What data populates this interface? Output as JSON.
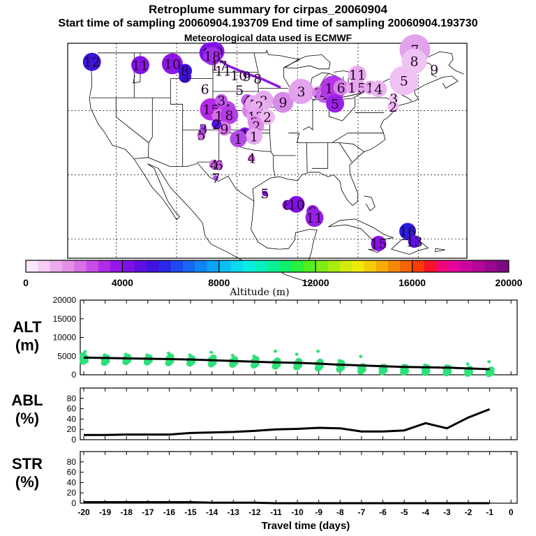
{
  "header": {
    "title": "Retroplume summary for cirpas_20060904",
    "subtitle": "Start time of sampling 20060904.193709     End time of sampling 20060904.193730",
    "met": "Meteorological data used is ECMWF"
  },
  "colorbar": {
    "title": "Altitude (m)",
    "tick_labels": [
      "0",
      "4000",
      "8000",
      "12000",
      "16000",
      "20000"
    ],
    "colors": [
      "#fbe6fb",
      "#f5cdf5",
      "#eeaaee",
      "#e590e8",
      "#d870e6",
      "#c84de6",
      "#b02be8",
      "#9419e8",
      "#7d10e6",
      "#600fe3",
      "#3f12de",
      "#2a27e6",
      "#1f4af0",
      "#1667f3",
      "#0f86f6",
      "#0aa3f5",
      "#07c1f3",
      "#07daee",
      "#05eee0",
      "#04f0bc",
      "#08f096",
      "#0ef06b",
      "#28f03c",
      "#53ee20",
      "#7eec15",
      "#a8ec10",
      "#d2ec0a",
      "#f0ea07",
      "#f5cc05",
      "#f5ac05",
      "#f58705",
      "#f56404",
      "#f73c04",
      "#f8122a",
      "#f3057a",
      "#e3059e",
      "#cb06a0",
      "#b3069a",
      "#98078e",
      "#7b0a80"
    ],
    "color_hex_list_note": ""
  },
  "map": {
    "markers": [
      {
        "label": "12",
        "lon": -124.0,
        "lat": 47.6,
        "size": 13,
        "color": "#3a16d8"
      },
      {
        "label": "11",
        "lon": -116.0,
        "lat": 47.1,
        "size": 13,
        "color": "#8313e6"
      },
      {
        "label": "10",
        "lon": -110.7,
        "lat": 47.3,
        "size": 15,
        "color": "#8a16e6"
      },
      {
        "label": "9",
        "lon": -108.6,
        "lat": 45.3,
        "size": 9,
        "color": "#3d12de"
      },
      {
        "label": "8",
        "lon": -108.6,
        "lat": 46.2,
        "size": 10,
        "color": "#3d12de"
      },
      {
        "label": "20",
        "lon": -103.7,
        "lat": 49.2,
        "size": 14,
        "color": "#8a18e6"
      },
      {
        "label": "19",
        "lon": -104.5,
        "lat": 49.0,
        "size": 15,
        "color": "#7d12e6"
      },
      {
        "label": "18",
        "lon": -104.1,
        "lat": 48.5,
        "size": 13,
        "color": "#a030e8"
      },
      {
        "label": "17",
        "lon": -103.0,
        "lat": 47.0,
        "size": 0,
        "color": "#8a18e6"
      },
      {
        "label": "11",
        "lon": -102.3,
        "lat": 46.2,
        "size": 0,
        "color": "#8a18e6"
      },
      {
        "label": "10",
        "lon": -99.7,
        "lat": 45.5,
        "size": 0,
        "color": "#8a18e6"
      },
      {
        "label": "9",
        "lon": -98.4,
        "lat": 45.4,
        "size": 0,
        "color": "#8a18e6"
      },
      {
        "label": "8",
        "lon": -96.6,
        "lat": 45.0,
        "size": 0,
        "color": "#8a18e6"
      },
      {
        "label": "6",
        "lon": -105.3,
        "lat": 43.4,
        "size": 0,
        "color": "#8a18e6"
      },
      {
        "label": "5",
        "lon": -99.6,
        "lat": 43.2,
        "size": 0,
        "color": "#8a18e6"
      },
      {
        "label": "15",
        "lon": -104.3,
        "lat": 40.2,
        "size": 16,
        "color": "#b52be8"
      },
      {
        "label": "4",
        "lon": -101.6,
        "lat": 40.2,
        "size": 12,
        "color": "#b24ae6"
      },
      {
        "label": "3",
        "lon": -102.6,
        "lat": 41.6,
        "size": 9,
        "color": "#c05ae6"
      },
      {
        "label": "1",
        "lon": -103.0,
        "lat": 39.2,
        "size": 10,
        "color": "#d470e6"
      },
      {
        "label": "8",
        "lon": -101.3,
        "lat": 39.3,
        "size": 13,
        "color": "#b53de8"
      },
      {
        "label": "1",
        "lon": -97.9,
        "lat": 40.0,
        "size": 11,
        "color": "#dc80e8"
      },
      {
        "label": "4",
        "lon": -98.3,
        "lat": 41.6,
        "size": 9,
        "color": "#c55ae6"
      },
      {
        "label": "7",
        "lon": -97.2,
        "lat": 41.0,
        "size": 13,
        "color": "#e4a5ee"
      },
      {
        "label": "3",
        "lon": -95.6,
        "lat": 41.6,
        "size": 14,
        "color": "#e6aaef"
      },
      {
        "label": "2",
        "lon": -96.3,
        "lat": 40.7,
        "size": 12,
        "color": "#e9b0ef"
      },
      {
        "label": "12",
        "lon": -96.9,
        "lat": 39.1,
        "size": 13,
        "color": "#e4a5ee"
      },
      {
        "label": "2",
        "lon": -95.0,
        "lat": 39.0,
        "size": 11,
        "color": "#edbbf0"
      },
      {
        "label": "2",
        "lon": -97.1,
        "lat": 38.2,
        "size": 10,
        "color": "#dd8ee8"
      },
      {
        "label": "2",
        "lon": -96.8,
        "lat": 37.6,
        "size": 11,
        "color": "#dd8ee8"
      },
      {
        "label": "9",
        "lon": -102.1,
        "lat": 37.2,
        "size": 10,
        "color": "#d47ae6"
      },
      {
        "label": "2",
        "lon": -103.4,
        "lat": 37.9,
        "size": 7,
        "color": "#5014e0"
      },
      {
        "label": "1",
        "lon": -98.7,
        "lat": 36.3,
        "size": 10,
        "color": "#7812e6"
      },
      {
        "label": "1",
        "lon": -97.2,
        "lat": 36.0,
        "size": 12,
        "color": "#e6a9ef"
      },
      {
        "label": "1",
        "lon": -99.8,
        "lat": 35.6,
        "size": 12,
        "color": "#b04ae6"
      },
      {
        "label": "5",
        "lon": -105.9,
        "lat": 36.2,
        "size": 6,
        "color": "#d070e6"
      },
      {
        "label": "3",
        "lon": -105.6,
        "lat": 37.2,
        "size": 5,
        "color": "#a040e6"
      },
      {
        "label": "4",
        "lon": -103.8,
        "lat": 31.6,
        "size": 7,
        "color": "#d070e6"
      },
      {
        "label": "6",
        "lon": -103.0,
        "lat": 31.5,
        "size": 6,
        "color": "#c860e6"
      },
      {
        "label": "7",
        "lon": -103.5,
        "lat": 29.5,
        "size": 4,
        "color": "#a050e6"
      },
      {
        "label": "4",
        "lon": -97.6,
        "lat": 32.6,
        "size": 5,
        "color": "#d070e6"
      },
      {
        "label": "9",
        "lon": -92.4,
        "lat": 41.3,
        "size": 15,
        "color": "#d58ae8"
      },
      {
        "label": "3",
        "lon": -89.4,
        "lat": 43.0,
        "size": 18,
        "color": "#e3a2ee"
      },
      {
        "label": "3",
        "lon": -86.6,
        "lat": 42.8,
        "size": 9,
        "color": "#d68ae8"
      },
      {
        "label": "4",
        "lon": -85.6,
        "lat": 42.5,
        "size": 12,
        "color": "#c665e6"
      },
      {
        "label": "16",
        "lon": -84.1,
        "lat": 43.5,
        "size": 18,
        "color": "#b535e8"
      },
      {
        "label": "5",
        "lon": -83.8,
        "lat": 41.1,
        "size": 13,
        "color": "#9a20e8"
      },
      {
        "label": "6",
        "lon": -82.8,
        "lat": 43.6,
        "size": 11,
        "color": "#d683e8"
      },
      {
        "label": "1",
        "lon": -81.0,
        "lat": 43.6,
        "size": 9,
        "color": "#e6a9ef"
      },
      {
        "label": "11",
        "lon": -80.1,
        "lat": 45.6,
        "size": 13,
        "color": "#e6a9ef"
      },
      {
        "label": "5",
        "lon": -79.4,
        "lat": 43.6,
        "size": 8,
        "color": "#e6a9ef"
      },
      {
        "label": "1",
        "lon": -78.0,
        "lat": 43.6,
        "size": 10,
        "color": "#e6a9ef"
      },
      {
        "label": "4",
        "lon": -76.6,
        "lat": 43.4,
        "size": 12,
        "color": "#ebb6f0"
      },
      {
        "label": "5",
        "lon": -72.4,
        "lat": 44.7,
        "size": 21,
        "color": "#f0c1f3"
      },
      {
        "label": "3",
        "lon": -74.1,
        "lat": 41.9,
        "size": 7,
        "color": "#f3cdf5"
      },
      {
        "label": "2",
        "lon": -74.2,
        "lat": 40.6,
        "size": 8,
        "color": "#ecbbf0"
      },
      {
        "label": "7",
        "lon": -70.6,
        "lat": 49.5,
        "size": 22,
        "color": "#e3a2ee"
      },
      {
        "label": "8",
        "lon": -70.7,
        "lat": 47.7,
        "size": 18,
        "color": "#efc4f3"
      },
      {
        "label": "9",
        "lon": -67.4,
        "lat": 46.4,
        "size": 0,
        "color": "#efc4f3"
      },
      {
        "label": "5",
        "lon": -95.4,
        "lat": 27.1,
        "size": 4,
        "color": "#8010e6"
      },
      {
        "label": "8",
        "lon": -91.7,
        "lat": 25.3,
        "size": 7,
        "color": "#8010e6"
      },
      {
        "label": "10",
        "lon": -90.2,
        "lat": 25.4,
        "size": 12,
        "color": "#8010e6"
      },
      {
        "label": "9",
        "lon": -87.5,
        "lat": 24.3,
        "size": 9,
        "color": "#9520e8"
      },
      {
        "label": "11",
        "lon": -87.2,
        "lat": 23.3,
        "size": 13,
        "color": "#9520e8"
      },
      {
        "label": "16",
        "lon": -71.8,
        "lat": 21.2,
        "size": 12,
        "color": "#2a1ede"
      },
      {
        "label": "13",
        "lon": -70.7,
        "lat": 19.6,
        "size": 9,
        "color": "#5a14e0"
      },
      {
        "label": "15",
        "lon": -76.6,
        "lat": 19.3,
        "size": 11,
        "color": "#8a10e6"
      }
    ],
    "trail": [
      [
        -104.2,
        49.6
      ],
      [
        -103.6,
        48.3
      ],
      [
        -101.5,
        47.0
      ],
      [
        -98.5,
        45.8
      ],
      [
        -95.8,
        44.9
      ],
      [
        -92.8,
        43.6
      ]
    ],
    "trail_color": "#8a16e6"
  },
  "chart_data": [
    {
      "type": "scatter",
      "name": "ALT",
      "ylabel": "ALT\n(m)",
      "ylabel_line1": "ALT",
      "ylabel_line2": "(m)",
      "ylim": [
        0,
        20000
      ],
      "ytick_labels": [
        "20000",
        "15000",
        "10000",
        "5000",
        "0"
      ],
      "yticks": [
        20000,
        15000,
        10000,
        5000,
        0
      ],
      "x": [
        -20,
        -19,
        -18,
        -17,
        -16,
        -15,
        -14,
        -13,
        -12,
        -11,
        -10,
        -9,
        -8,
        -7,
        -6,
        -5,
        -4,
        -3,
        -2,
        -1
      ],
      "mean": [
        4600,
        4500,
        4400,
        4300,
        4200,
        4100,
        3900,
        3700,
        3500,
        3300,
        3200,
        3000,
        2700,
        2500,
        2300,
        2100,
        2000,
        1900,
        1700,
        1500
      ],
      "spread": [
        [
          3500,
          3800,
          4200,
          4600,
          5200,
          6200
        ],
        [
          3200,
          3700,
          4100,
          4700,
          5300
        ],
        [
          3400,
          3900,
          4300,
          4800,
          5500
        ],
        [
          3300,
          3800,
          4200,
          4600,
          5300
        ],
        [
          3100,
          3600,
          4300,
          4900,
          5800
        ],
        [
          3000,
          3500,
          3900,
          4400,
          5300
        ],
        [
          2800,
          3300,
          4000,
          4600,
          6000
        ],
        [
          2700,
          3200,
          3700,
          4200,
          5200
        ],
        [
          2500,
          3000,
          3600,
          4200,
          5000
        ],
        [
          2200,
          2700,
          3300,
          3800,
          6300
        ],
        [
          2000,
          2500,
          3000,
          3700,
          5500
        ],
        [
          1700,
          2300,
          2900,
          3500,
          6300
        ],
        [
          1400,
          1900,
          2600,
          3200,
          3800
        ],
        [
          900,
          1400,
          1900,
          2300,
          4900
        ],
        [
          700,
          1200,
          1600,
          2100,
          2500
        ],
        [
          600,
          1000,
          1500,
          2000,
          2500
        ],
        [
          500,
          1000,
          1500,
          2000,
          2600
        ],
        [
          400,
          900,
          1400,
          1900,
          2400
        ],
        [
          300,
          700,
          1100,
          1600,
          2900
        ],
        [
          200,
          500,
          900,
          1400,
          3500
        ]
      ],
      "point_color": "#2ee07a",
      "line_color": "#000000"
    },
    {
      "type": "line",
      "name": "ABL",
      "ylabel_line1": "ABL",
      "ylabel_line2": "(%)",
      "ylim": [
        0,
        100
      ],
      "ytick_labels": [
        "80",
        "60",
        "40",
        "20",
        "0"
      ],
      "yticks": [
        80,
        60,
        40,
        20,
        0
      ],
      "x": [
        -20,
        -19,
        -18,
        -17,
        -16,
        -15,
        -14,
        -13,
        -12,
        -11,
        -10,
        -9,
        -8,
        -7,
        -6,
        -5,
        -4,
        -3,
        -2,
        -1
      ],
      "values": [
        9,
        9,
        10,
        10,
        10,
        13,
        14,
        15,
        17,
        20,
        21,
        23,
        22,
        16,
        16,
        18,
        32,
        22,
        43,
        59
      ]
    },
    {
      "type": "line",
      "name": "STR",
      "ylabel_line1": "STR",
      "ylabel_line2": "(%)",
      "ylim": [
        0,
        100
      ],
      "ytick_labels": [
        "80",
        "60",
        "40",
        "20",
        "0"
      ],
      "yticks": [
        80,
        60,
        40,
        20,
        0
      ],
      "x": [
        -20,
        -19,
        -18,
        -17,
        -16,
        -15,
        -14,
        -13,
        -12,
        -11,
        -10,
        -9,
        -8,
        -7,
        -6,
        -5,
        -4,
        -3,
        -2,
        -1
      ],
      "values": [
        2,
        2,
        2,
        2,
        2,
        2,
        1,
        1,
        1,
        0,
        0,
        0,
        0,
        0,
        0,
        0,
        0,
        0,
        0,
        0
      ],
      "xlabel": "Travel time (days)",
      "xtick_labels": [
        "-20",
        "-19",
        "-18",
        "-17",
        "-16",
        "-15",
        "-14",
        "-13",
        "-12",
        "-11",
        "-10",
        "-9",
        "-8",
        "-7",
        "-6",
        "-5",
        "-4",
        "-3",
        "-2",
        "-1",
        "0"
      ]
    }
  ]
}
